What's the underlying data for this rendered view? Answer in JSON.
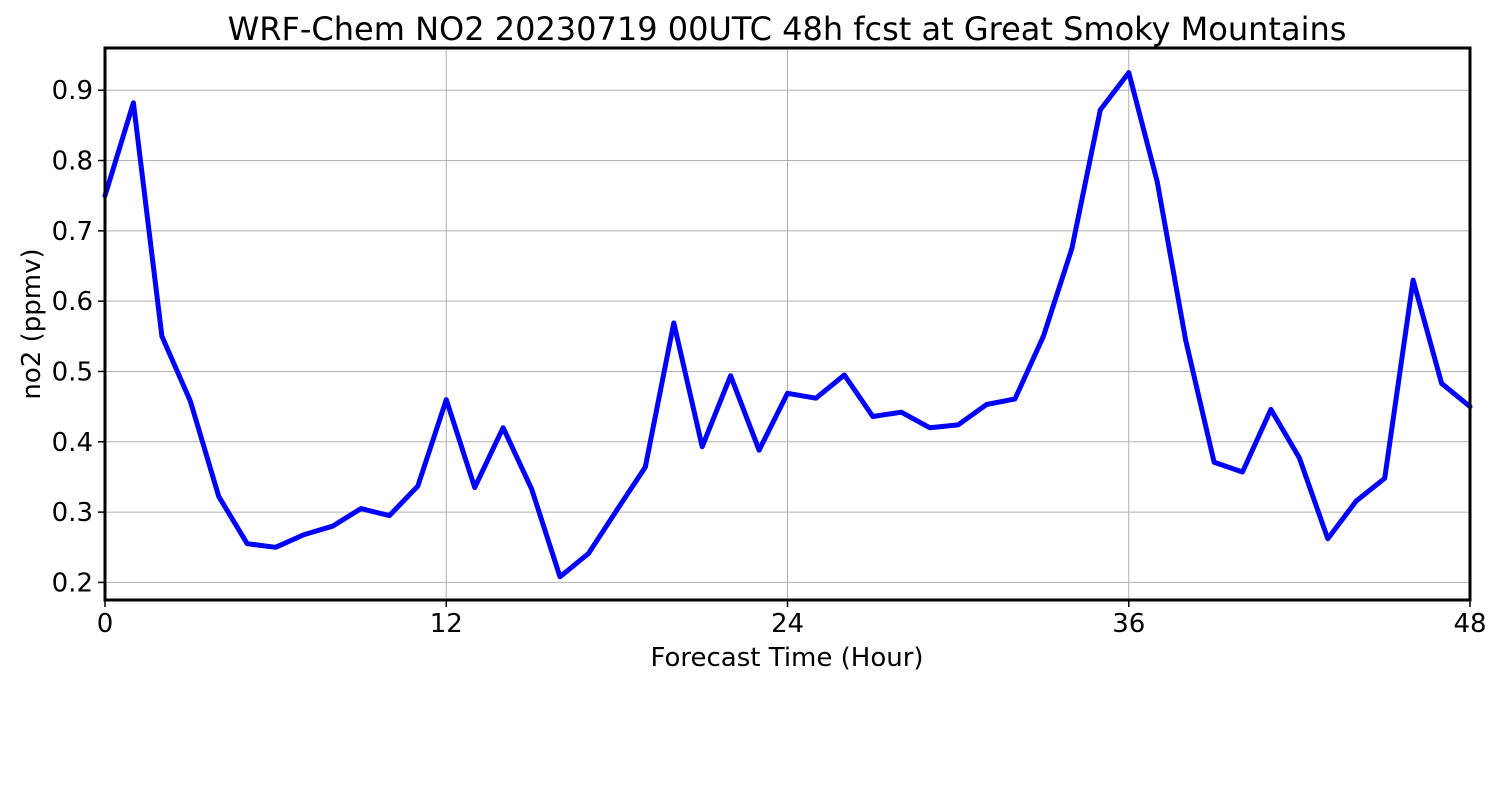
{
  "chart_data": {
    "type": "line",
    "title": "WRF-Chem NO2  20230719 00UTC 48h fcst at Great Smoky Mountains",
    "xlabel": "Forecast Time (Hour)",
    "ylabel": "no2  (ppmv)",
    "xlim": [
      0,
      48
    ],
    "ylim": [
      0.175,
      0.96
    ],
    "xticks": [
      0,
      12,
      24,
      36,
      48
    ],
    "yticks": [
      0.2,
      0.3,
      0.4,
      0.5,
      0.6,
      0.7,
      0.8,
      0.9
    ],
    "x_tick_labels": [
      "0",
      "12",
      "24",
      "36",
      "48"
    ],
    "y_tick_labels": [
      "0.2",
      "0.3",
      "0.4",
      "0.5",
      "0.6",
      "0.7",
      "0.8",
      "0.9"
    ],
    "grid": true,
    "series": [
      {
        "color": "#0000ff",
        "x": [
          0,
          1,
          2,
          3,
          4,
          5,
          6,
          7,
          8,
          9,
          10,
          11,
          12,
          13,
          14,
          15,
          16,
          17,
          18,
          19,
          20,
          21,
          22,
          23,
          24,
          25,
          26,
          27,
          28,
          29,
          30,
          31,
          32,
          33,
          34,
          35,
          36,
          37,
          38,
          39,
          40,
          41,
          42,
          43,
          44,
          45,
          46,
          47,
          48
        ],
        "y": [
          0.75,
          0.882,
          0.55,
          0.458,
          0.322,
          0.255,
          0.25,
          0.268,
          0.28,
          0.305,
          0.295,
          0.337,
          0.46,
          0.335,
          0.42,
          0.333,
          0.208,
          0.241,
          0.303,
          0.364,
          0.569,
          0.393,
          0.494,
          0.388,
          0.469,
          0.462,
          0.495,
          0.436,
          0.442,
          0.42,
          0.424,
          0.453,
          0.461,
          0.55,
          0.675,
          0.872,
          0.925,
          0.77,
          0.545,
          0.371,
          0.357,
          0.446,
          0.377,
          0.262,
          0.316,
          0.348,
          0.63,
          0.483,
          0.45
        ]
      }
    ]
  }
}
